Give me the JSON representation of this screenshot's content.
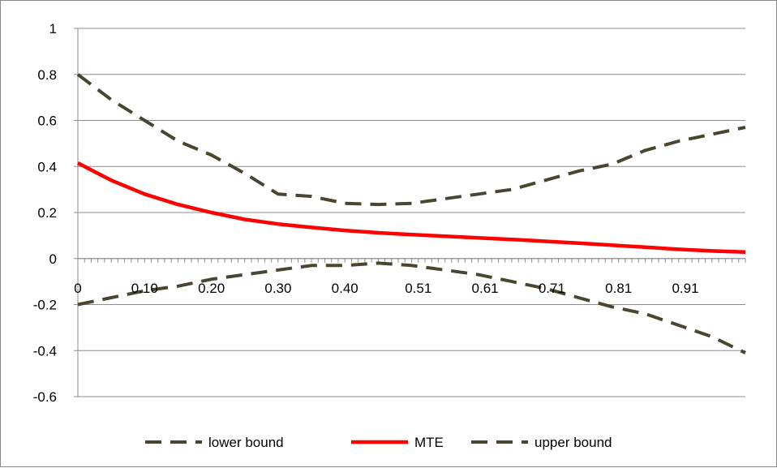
{
  "chart_data": {
    "type": "line",
    "title": "",
    "xlabel": "",
    "ylabel": "",
    "xlim": [
      0,
      0.9999
    ],
    "ylim": [
      -0.6,
      1
    ],
    "grid": true,
    "legend_position": "bottom",
    "y_ticks": [
      "1",
      "0.8",
      "0.6",
      "0.4",
      "0.2",
      "0",
      "-0.2",
      "-0.4",
      "-0.6"
    ],
    "x_tick_labels": [
      {
        "value": 0,
        "label": "0"
      },
      {
        "value": 0.1,
        "label": "0.10"
      },
      {
        "value": 0.2,
        "label": "0.20"
      },
      {
        "value": 0.3,
        "label": "0.30"
      },
      {
        "value": 0.4,
        "label": "0.40"
      },
      {
        "value": 0.51,
        "label": "0.51"
      },
      {
        "value": 0.61,
        "label": "0.61"
      },
      {
        "value": 0.71,
        "label": "0.71"
      },
      {
        "value": 0.81,
        "label": "0.81"
      },
      {
        "value": 0.91,
        "label": "0.91"
      }
    ],
    "series": [
      {
        "name": "lower bound",
        "color": "#4a4530",
        "dash": "dashed",
        "x": [
          0,
          0.05,
          0.1,
          0.15,
          0.2,
          0.25,
          0.3,
          0.35,
          0.4,
          0.45,
          0.5,
          0.55,
          0.6,
          0.65,
          0.7,
          0.75,
          0.8,
          0.85,
          0.9,
          0.95,
          0.9999
        ],
        "y": [
          -0.2,
          -0.17,
          -0.14,
          -0.12,
          -0.09,
          -0.07,
          -0.05,
          -0.03,
          -0.03,
          -0.02,
          -0.03,
          -0.05,
          -0.07,
          -0.1,
          -0.13,
          -0.17,
          -0.21,
          -0.24,
          -0.29,
          -0.34,
          -0.41
        ]
      },
      {
        "name": "MTE",
        "color": "#ff0000",
        "dash": "solid",
        "x": [
          0,
          0.05,
          0.1,
          0.15,
          0.2,
          0.25,
          0.3,
          0.35,
          0.4,
          0.45,
          0.5,
          0.55,
          0.6,
          0.65,
          0.7,
          0.75,
          0.8,
          0.85,
          0.9,
          0.95,
          0.9999
        ],
        "y": [
          0.415,
          0.34,
          0.28,
          0.235,
          0.2,
          0.17,
          0.15,
          0.135,
          0.122,
          0.112,
          0.104,
          0.097,
          0.09,
          0.083,
          0.075,
          0.067,
          0.058,
          0.049,
          0.04,
          0.033,
          0.028
        ]
      },
      {
        "name": "upper bound",
        "color": "#4a4530",
        "dash": "dashed",
        "x": [
          0,
          0.05,
          0.1,
          0.15,
          0.2,
          0.25,
          0.3,
          0.35,
          0.4,
          0.45,
          0.5,
          0.55,
          0.6,
          0.65,
          0.7,
          0.75,
          0.8,
          0.85,
          0.9,
          0.95,
          0.9999
        ],
        "y": [
          0.8,
          0.69,
          0.6,
          0.51,
          0.45,
          0.37,
          0.28,
          0.27,
          0.24,
          0.235,
          0.24,
          0.26,
          0.28,
          0.3,
          0.34,
          0.38,
          0.41,
          0.47,
          0.51,
          0.54,
          0.57
        ]
      }
    ]
  }
}
